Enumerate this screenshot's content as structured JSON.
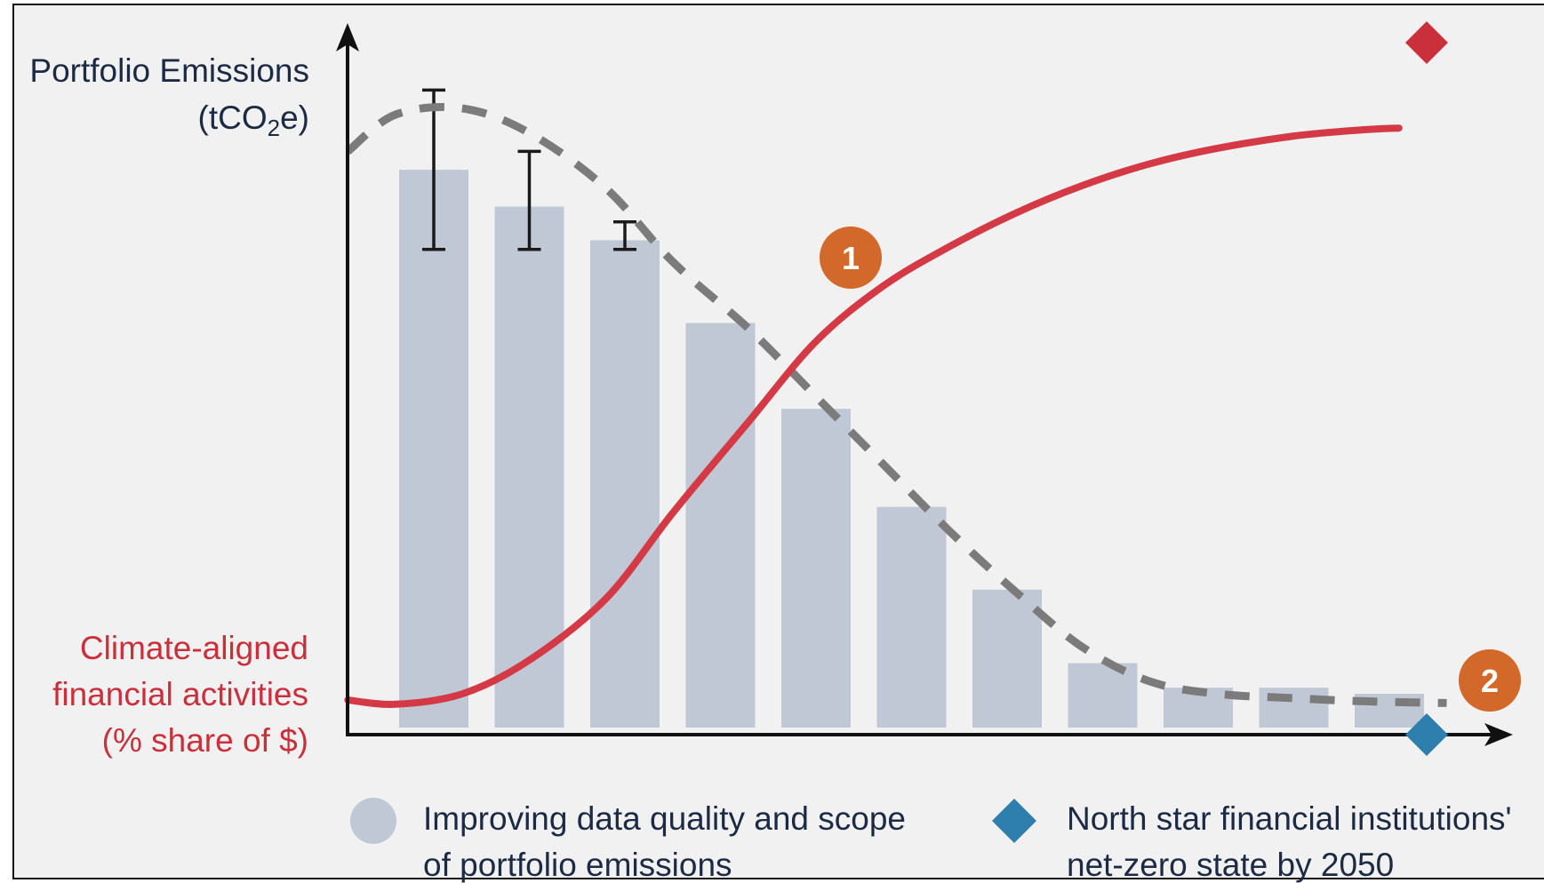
{
  "chart_data": {
    "type": "bar",
    "ylabel_line1": "Portfolio Emissions",
    "ylabel_line2_pre": "(tCO",
    "ylabel_line2_sub": "2",
    "ylabel_line2_post": "e)",
    "secondary_label_lines": [
      "Climate-aligned",
      "financial activities",
      "(% share of $)"
    ],
    "ylim": [
      0,
      100
    ],
    "bars": {
      "values": [
        91,
        85,
        79.5,
        66,
        52,
        36,
        22.5,
        10.5,
        6.5,
        6.5,
        5.5
      ],
      "error_bars": [
        {
          "index": 0,
          "low": 78,
          "high": 104
        },
        {
          "index": 1,
          "low": 78,
          "high": 94
        },
        {
          "index": 2,
          "low": 78,
          "high": 82.5
        }
      ]
    },
    "emissions_trend_dashed": {
      "x": [
        -0.9,
        -0.4,
        0.3,
        1.0,
        1.8,
        2.5,
        3.3,
        4.0,
        4.7,
        5.4,
        6.1,
        6.8,
        7.5,
        8.2,
        9.0,
        9.7,
        10.6
      ],
      "y": [
        94,
        100,
        101,
        97,
        88,
        76,
        65,
        54,
        43,
        32,
        22,
        13,
        7.5,
        5.5,
        4.8,
        4.3,
        4.0
      ]
    },
    "climate_aligned_curve": {
      "x": [
        -0.9,
        -0.4,
        0.3,
        1.0,
        1.8,
        2.5,
        3.3,
        4.0,
        4.7,
        5.4,
        6.1,
        6.8,
        7.5,
        8.2,
        9.0,
        9.7,
        10.1
      ],
      "y": [
        4.5,
        3.8,
        5.5,
        11,
        21,
        35,
        50,
        63,
        72,
        78.5,
        84,
        88.5,
        92,
        94.5,
        96.5,
        97.5,
        97.8
      ]
    },
    "markers": [
      {
        "label": "1",
        "color": "#d2692a"
      },
      {
        "label": "2",
        "color": "#d2692a"
      }
    ],
    "end_markers": {
      "curve_end_color": "#c9303c",
      "axis_end_color": "#2e7eae"
    },
    "colors": {
      "bars": "#c1c8d5",
      "dashed_line": "#7b7b7b",
      "curve": "#d33a45",
      "axis": "#111111",
      "panel_background": "#f1f1f1"
    },
    "legend": [
      {
        "marker": "circle",
        "color": "#c1c8d5",
        "lines": [
          "Improving data quality and scope",
          "of portfolio emissions"
        ]
      },
      {
        "marker": "diamond",
        "color": "#2e7eae",
        "lines": [
          "North star financial institutions'",
          "net-zero state by 2050"
        ]
      }
    ]
  }
}
